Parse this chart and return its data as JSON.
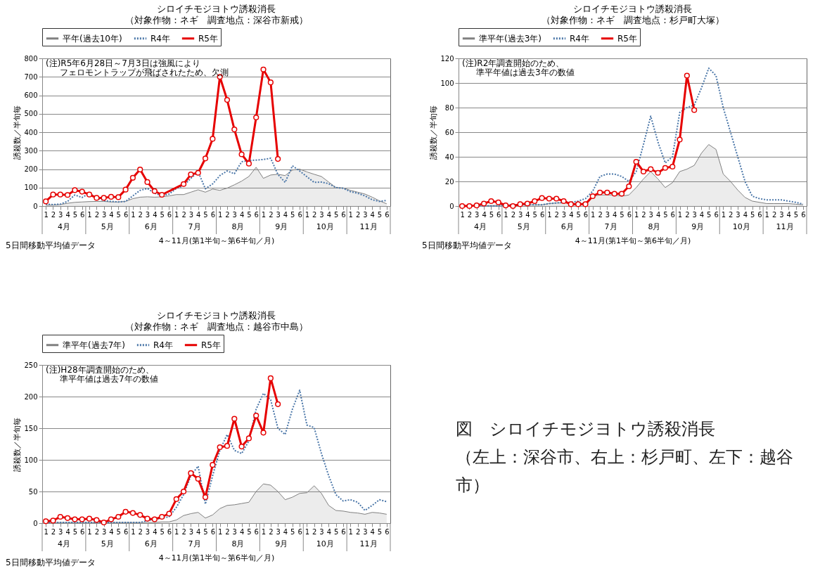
{
  "chart_data": [
    {
      "type": "line",
      "title": "シロイチモジヨトウ誘殺消長",
      "subtitle": "（対象作物：ネギ　調査地点：深谷市新戒）",
      "xlabel": "4～11月(第1半旬～第6半旬／月)",
      "ylabel": "誘殺数／半旬毎",
      "categories": [
        "1",
        "2",
        "3",
        "4",
        "5",
        "6",
        "1",
        "2",
        "3",
        "4",
        "5",
        "6",
        "1",
        "2",
        "3",
        "4",
        "5",
        "6",
        "1",
        "2",
        "3",
        "4",
        "5",
        "6",
        "1",
        "2",
        "3",
        "4",
        "5",
        "6",
        "1",
        "2",
        "3",
        "4",
        "5",
        "6",
        "1",
        "2",
        "3",
        "4",
        "5",
        "6",
        "1",
        "2",
        "3",
        "4",
        "5",
        "6"
      ],
      "ylim": [
        0,
        800
      ],
      "yticks": [
        0,
        100,
        200,
        300,
        400,
        500,
        600,
        700,
        800
      ],
      "grid": "y",
      "legend": "top",
      "annotations": [
        "5日間移動平均値データ",
        "4月",
        "5月",
        "6月",
        "7月",
        "8月",
        "9月",
        "10月",
        "11月",
        "(注)R5年6月28日～7月3日は強風により",
        "フェロモントラップが飛ばされたため、欠測"
      ],
      "series": [
        {
          "name": "平年(過去10年)",
          "type": "area",
          "color": "#808080",
          "values": [
            5,
            5,
            8,
            15,
            20,
            22,
            24,
            25,
            25,
            22,
            22,
            25,
            40,
            48,
            50,
            48,
            50,
            55,
            62,
            62,
            75,
            88,
            75,
            92,
            85,
            97,
            115,
            135,
            160,
            210,
            150,
            168,
            172,
            165,
            195,
            200,
            185,
            172,
            160,
            130,
            100,
            98,
            85,
            75,
            65,
            48,
            28,
            12
          ]
        },
        {
          "name": "R4年",
          "color": "#4a76a8",
          "line_style": "dotted",
          "values": [
            10,
            8,
            10,
            25,
            60,
            46,
            70,
            45,
            30,
            25,
            22,
            25,
            55,
            85,
            95,
            70,
            55,
            65,
            95,
            110,
            150,
            186,
            93,
            120,
            165,
            190,
            175,
            240,
            246,
            249,
            252,
            259,
            171,
            128,
            218,
            190,
            159,
            128,
            130,
            121,
            100,
            96,
            78,
            69,
            55,
            34,
            25,
            30
          ]
        },
        {
          "name": "R5年",
          "color": "#e60000",
          "marker": "circle",
          "values": [
            25,
            62,
            62,
            60,
            86,
            78,
            62,
            44,
            44,
            50,
            48,
            89,
            153,
            198,
            130,
            81,
            61,
            null,
            null,
            119,
            171,
            180,
            258,
            364,
            700,
            575,
            415,
            280,
            230,
            480,
            740,
            670,
            255,
            null,
            null,
            null,
            null,
            null,
            null,
            null,
            null,
            null,
            null,
            null,
            null,
            null,
            null,
            null
          ]
        }
      ]
    },
    {
      "type": "line",
      "title": "シロイチモジヨトウ誘殺消長",
      "subtitle": "（対象作物：ネギ　調査地点：杉戸町大塚）",
      "xlabel": "4～11月(第1半旬～第6半旬／月)",
      "ylabel": "誘殺数／半旬毎",
      "categories": [
        "1",
        "2",
        "3",
        "4",
        "5",
        "6",
        "1",
        "2",
        "3",
        "4",
        "5",
        "6",
        "1",
        "2",
        "3",
        "4",
        "5",
        "6",
        "1",
        "2",
        "3",
        "4",
        "5",
        "6",
        "1",
        "2",
        "3",
        "4",
        "5",
        "6",
        "1",
        "2",
        "3",
        "4",
        "5",
        "6",
        "1",
        "2",
        "3",
        "4",
        "5",
        "6",
        "1",
        "2",
        "3",
        "4",
        "5",
        "6"
      ],
      "ylim": [
        0,
        120
      ],
      "yticks": [
        0,
        20,
        40,
        60,
        80,
        100,
        120
      ],
      "grid": "y",
      "legend": "top",
      "annotations": [
        "5日間移動平均値データ",
        "4月",
        "5月",
        "6月",
        "7月",
        "8月",
        "9月",
        "10月",
        "11月",
        "(注)R2年調査開始のため、",
        "準平年値は過去3年の数値"
      ],
      "series": [
        {
          "name": "準平年(過去3年)",
          "type": "area",
          "color": "#808080",
          "values": [
            0.5,
            0.5,
            0.5,
            0.5,
            0.5,
            0.5,
            1,
            1,
            1,
            1,
            1,
            1,
            2,
            2.5,
            2.5,
            2.5,
            2,
            2.5,
            8,
            9,
            9,
            9,
            8,
            9,
            15,
            22,
            28,
            22,
            15,
            19,
            28,
            30,
            33,
            43,
            50,
            46,
            26,
            20,
            13,
            7,
            4,
            3,
            2,
            2,
            2,
            2,
            1.5,
            1
          ]
        },
        {
          "name": "R4年",
          "color": "#4a76a8",
          "line_style": "dotted",
          "values": [
            0,
            0,
            0,
            0,
            0,
            0,
            1,
            1,
            1,
            1,
            1,
            1,
            2,
            2.5,
            3,
            3,
            4,
            6,
            12,
            24,
            26,
            26,
            24,
            20,
            28,
            50,
            73,
            52,
            35,
            40,
            76,
            80,
            82,
            96,
            112,
            106,
            80,
            60,
            40,
            20,
            8,
            6,
            5,
            5,
            5,
            4,
            3,
            1.5
          ]
        },
        {
          "name": "R5年",
          "color": "#e60000",
          "marker": "circle",
          "values": [
            0,
            0,
            0.5,
            2,
            4,
            3,
            0.5,
            0,
            1.5,
            2,
            4,
            6.5,
            6,
            6,
            4,
            1.5,
            1.5,
            1.5,
            8,
            11,
            11,
            10,
            10,
            16,
            36,
            28,
            30,
            27,
            31,
            32,
            54,
            106,
            78,
            null,
            null,
            null,
            null,
            null,
            null,
            null,
            null,
            null,
            null,
            null,
            null,
            null,
            null,
            null
          ]
        }
      ]
    },
    {
      "type": "line",
      "title": "シロイチモジヨトウ誘殺消長",
      "subtitle": "（対象作物：ネギ　調査地点：越谷市中島）",
      "xlabel": "4～11月(第1半旬～第6半旬／月)",
      "ylabel": "誘殺数／半旬毎",
      "categories": [
        "1",
        "2",
        "3",
        "4",
        "5",
        "6",
        "1",
        "2",
        "3",
        "4",
        "5",
        "6",
        "1",
        "2",
        "3",
        "4",
        "5",
        "6",
        "1",
        "2",
        "3",
        "4",
        "5",
        "6",
        "1",
        "2",
        "3",
        "4",
        "5",
        "6",
        "1",
        "2",
        "3",
        "4",
        "5",
        "6",
        "1",
        "2",
        "3",
        "4",
        "5",
        "6",
        "1",
        "2",
        "3",
        "4",
        "5",
        "6"
      ],
      "ylim": [
        0,
        250
      ],
      "yticks": [
        0,
        50,
        100,
        150,
        200,
        250
      ],
      "grid": "y",
      "legend": "top",
      "annotations": [
        "5日間移動平均値データ",
        "4月",
        "5月",
        "6月",
        "7月",
        "8月",
        "9月",
        "10月",
        "11月",
        "(注)H28年調査開始のため、",
        "準平年値は過去7年の数値"
      ],
      "series": [
        {
          "name": "準平年(過去7年)",
          "type": "area",
          "color": "#808080",
          "values": [
            1,
            1,
            1,
            1,
            1,
            1,
            1,
            1,
            1,
            1,
            1,
            1,
            1,
            1,
            1,
            1,
            2,
            2,
            5,
            12,
            15,
            17,
            8,
            13,
            23,
            28,
            29,
            31,
            33,
            50,
            62,
            60,
            50,
            37,
            41,
            47,
            48,
            59,
            47,
            28,
            20,
            19,
            17,
            16,
            14,
            17,
            16,
            14
          ]
        },
        {
          "name": "R4年",
          "color": "#4a76a8",
          "line_style": "dotted",
          "values": [
            1,
            1,
            1,
            1,
            1,
            1,
            1,
            1,
            1,
            1,
            1,
            1,
            1,
            1,
            4,
            6,
            8,
            10,
            25,
            45,
            75,
            90,
            30,
            75,
            115,
            140,
            115,
            110,
            130,
            180,
            205,
            195,
            150,
            140,
            180,
            210,
            155,
            151,
            110,
            75,
            45,
            35,
            37,
            33,
            20,
            28,
            37,
            34
          ]
        },
        {
          "name": "R5年",
          "color": "#e60000",
          "marker": "circle",
          "values": [
            3,
            4,
            10,
            8,
            6,
            6,
            7,
            5,
            1,
            6,
            10,
            18,
            16,
            13,
            7,
            6,
            10,
            15,
            38,
            50,
            79,
            70,
            41,
            92,
            120,
            122,
            165,
            121,
            134,
            170,
            143,
            229,
            188,
            null,
            null,
            null,
            null,
            null,
            null,
            null,
            null,
            null,
            null,
            null,
            null,
            null,
            null,
            null
          ]
        }
      ]
    },
    {
      "type": "other",
      "title": "図　シロイチモジヨトウ誘殺消長",
      "subtitle": "（左上：深谷市、右上：杉戸町、左下：越谷市）"
    }
  ]
}
